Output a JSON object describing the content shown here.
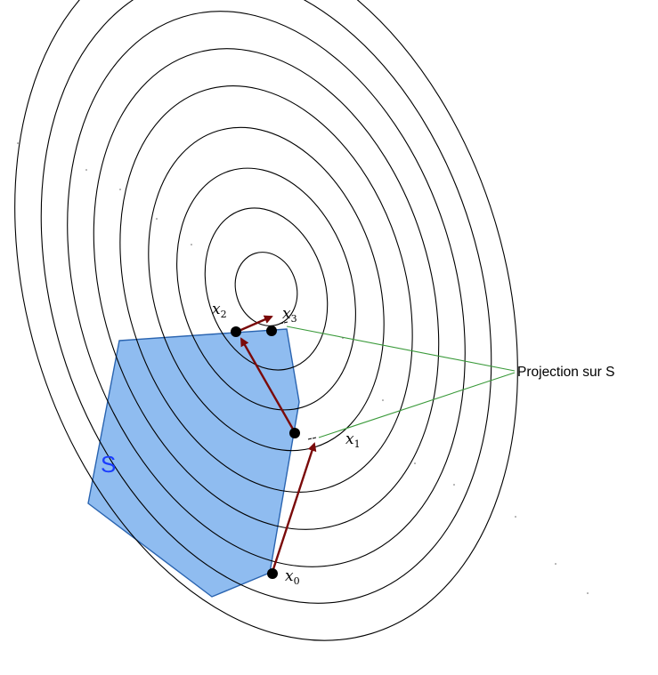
{
  "region": {
    "label": "S",
    "fill_color": "#8fbcf0",
    "stroke_color": "#2a64b0"
  },
  "points": [
    {
      "id": "x0",
      "base": "x",
      "subscript": "0"
    },
    {
      "id": "x1",
      "base": "x",
      "subscript": "1"
    },
    {
      "id": "x2",
      "base": "x",
      "subscript": "2"
    },
    {
      "id": "x3",
      "base": "x",
      "subscript": "3"
    }
  ],
  "callout": {
    "text": "Projection sur S",
    "line_color": "#3a9a3a"
  },
  "arrow_color": "#7a0a0a",
  "contour_count": 9
}
